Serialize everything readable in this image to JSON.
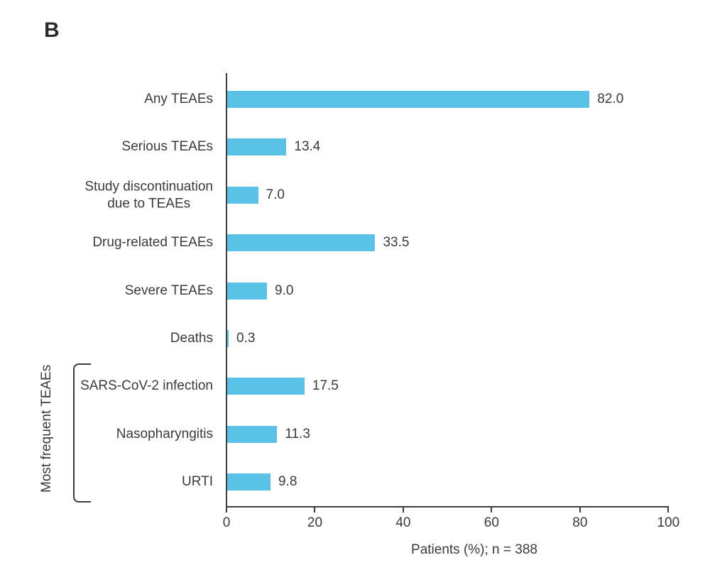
{
  "figure": {
    "panel_label": "B",
    "background_color": "#ffffff",
    "text_color": "#3a3a3a",
    "axis_color": "#3d3d3d"
  },
  "chart_data": {
    "type": "bar",
    "orientation": "horizontal",
    "title": "",
    "xlabel": "Patients (%); n = 388",
    "ylabel": "",
    "xlim": [
      0,
      100
    ],
    "xticks": [
      "0",
      "20",
      "40",
      "60",
      "80",
      "100"
    ],
    "xtick_values": [
      0,
      20,
      40,
      60,
      80,
      100
    ],
    "grid": false,
    "legend": null,
    "bar_color": "#5bc2e7",
    "categories": [
      "Any TEAEs",
      "Serious TEAEs",
      "Study discontinuation\ndue to TEAEs",
      "Drug-related TEAEs",
      "Severe TEAEs",
      "Deaths",
      "SARS-CoV-2 infection",
      "Nasopharyngitis",
      "URTI"
    ],
    "values": [
      82.0,
      13.4,
      7.0,
      33.5,
      9.0,
      0.3,
      17.5,
      11.3,
      9.8
    ],
    "value_labels": [
      "82.0",
      "13.4",
      "7.0",
      "33.5",
      "9.0",
      "0.3",
      "17.5",
      "11.3",
      "9.8"
    ],
    "group_annotation": {
      "label": "Most frequent TEAEs",
      "start_index": 6,
      "end_index": 8
    }
  }
}
